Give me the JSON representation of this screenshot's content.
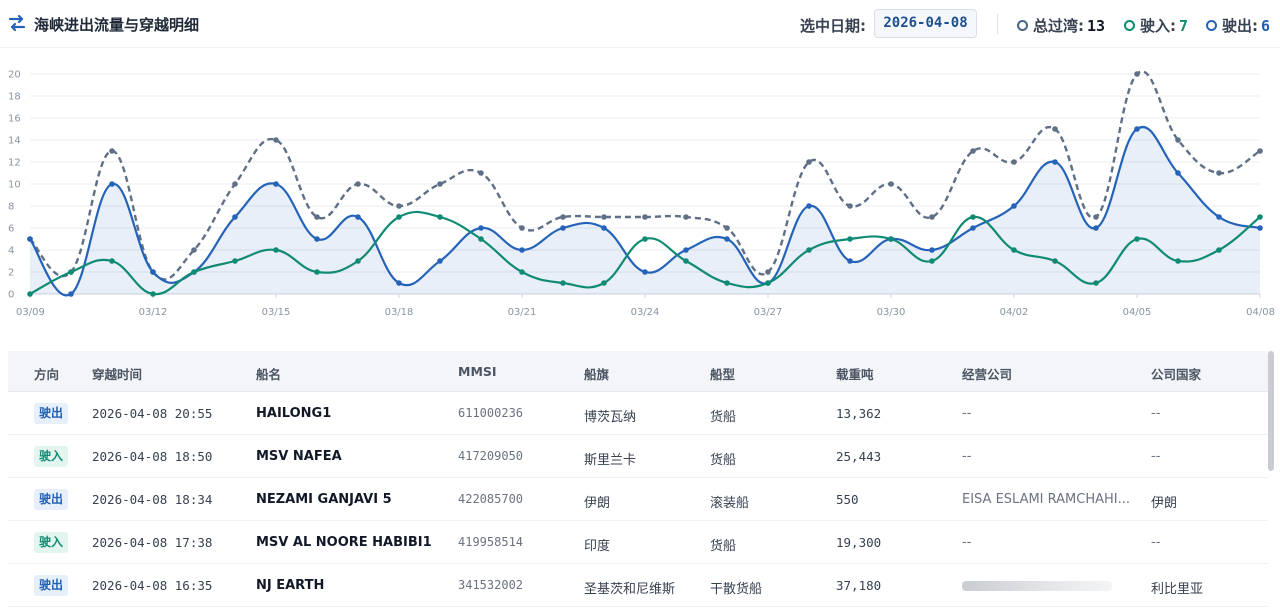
{
  "header": {
    "title": "海峡进出流量与穿越明细",
    "title_icon": "swap-arrows-icon",
    "date_label": "选中日期:",
    "date_value": "2026-04-08",
    "stats": [
      {
        "label": "总过湾:",
        "value": "13"
      },
      {
        "label": "驶入:",
        "value": "7"
      },
      {
        "label": "驶出:",
        "value": "6"
      }
    ]
  },
  "chart_data": {
    "type": "line",
    "ylim": [
      0,
      20
    ],
    "yticks": [
      "0",
      "2",
      "4",
      "6",
      "8",
      "10",
      "12",
      "14",
      "16",
      "18",
      "20"
    ],
    "x": [
      "03/09",
      "03/10",
      "03/11",
      "03/12",
      "03/13",
      "03/14",
      "03/15",
      "03/16",
      "03/17",
      "03/18",
      "03/19",
      "03/20",
      "03/21",
      "03/22",
      "03/23",
      "03/24",
      "03/25",
      "03/26",
      "03/27",
      "03/28",
      "03/29",
      "03/30",
      "03/31",
      "04/01",
      "04/02",
      "04/03",
      "04/04",
      "04/05",
      "04/06",
      "04/07",
      "04/08"
    ],
    "xtick_labels": [
      "03/09",
      "03/12",
      "03/15",
      "03/18",
      "03/21",
      "03/24",
      "03/27",
      "03/30",
      "04/02",
      "04/05",
      "04/08"
    ],
    "grid": true,
    "series": [
      {
        "style": "dashed",
        "color": "#5f6f86",
        "values": [
          5,
          2,
          13,
          2,
          4,
          10,
          14,
          7,
          10,
          8,
          10,
          11,
          6,
          7,
          7,
          7,
          7,
          6,
          2,
          12,
          8,
          10,
          7,
          13,
          12,
          15,
          7,
          20,
          14,
          11,
          13
        ]
      },
      {
        "style": "solid-filled",
        "color": "#2563b8",
        "values": [
          5,
          0,
          10,
          2,
          2,
          7,
          10,
          5,
          7,
          1,
          3,
          6,
          4,
          6,
          6,
          2,
          4,
          5,
          1,
          8,
          3,
          5,
          4,
          6,
          8,
          12,
          6,
          15,
          11,
          7,
          6
        ]
      },
      {
        "style": "solid",
        "color": "#0f8a73",
        "values": [
          0,
          2,
          3,
          0,
          2,
          3,
          4,
          2,
          3,
          7,
          7,
          5,
          2,
          1,
          1,
          5,
          3,
          1,
          1,
          4,
          5,
          5,
          3,
          7,
          4,
          3,
          1,
          5,
          3,
          4,
          7
        ]
      }
    ]
  },
  "table": {
    "headers": [
      "方向",
      "穿越时间",
      "船名",
      "MMSI",
      "船旗",
      "船型",
      "载重吨",
      "经营公司",
      "公司国家"
    ],
    "rows": [
      {
        "direction": "驶出",
        "dir": "out",
        "time": "2026-04-08 20:55",
        "ship": "HAILONG1",
        "mmsi": "611000236",
        "flag": "博茨瓦纳",
        "type": "货船",
        "dwt": "13,362",
        "company": "--",
        "country": "--"
      },
      {
        "direction": "驶入",
        "dir": "in",
        "time": "2026-04-08 18:50",
        "ship": "MSV NAFEA",
        "mmsi": "417209050",
        "flag": "斯里兰卡",
        "type": "货船",
        "dwt": "25,443",
        "company": "--",
        "country": "--"
      },
      {
        "direction": "驶出",
        "dir": "out",
        "time": "2026-04-08 18:34",
        "ship": "NEZAMI GANJAVI 5",
        "mmsi": "422085700",
        "flag": "伊朗",
        "type": "滚装船",
        "dwt": "550",
        "company": "EISA ESLAMI RAMCHAHI...",
        "country": "伊朗"
      },
      {
        "direction": "驶入",
        "dir": "in",
        "time": "2026-04-08 17:38",
        "ship": "MSV AL NOORE HABIBI1",
        "mmsi": "419958514",
        "flag": "印度",
        "type": "货船",
        "dwt": "19,300",
        "company": "--",
        "country": "--"
      },
      {
        "direction": "驶出",
        "dir": "out",
        "time": "2026-04-08 16:35",
        "ship": "NJ EARTH",
        "mmsi": "341532002",
        "flag": "圣基茨和尼维斯",
        "type": "干散货船",
        "dwt": "37,180",
        "company": "",
        "country": "利比里亚"
      }
    ]
  }
}
